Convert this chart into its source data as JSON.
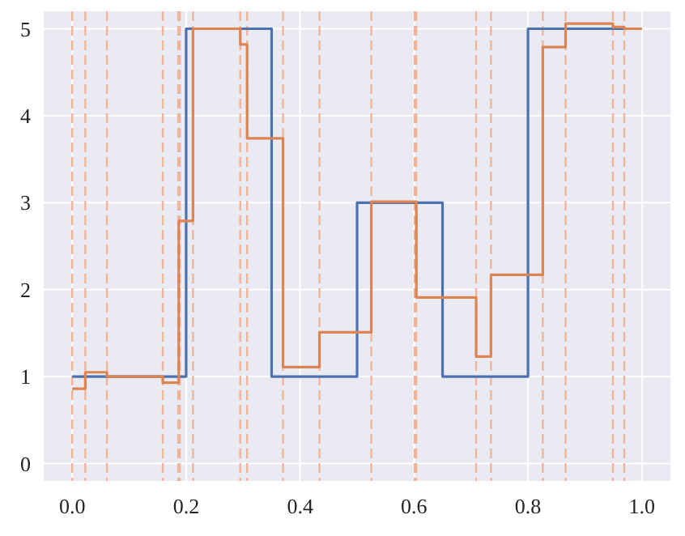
{
  "chart_data": {
    "type": "step",
    "xlim": [
      -0.05,
      1.05
    ],
    "ylim": [
      -0.2,
      5.2
    ],
    "xticks": [
      {
        "value": 0,
        "label": "0.0"
      },
      {
        "value": 0.2,
        "label": "0.2"
      },
      {
        "value": 0.4,
        "label": "0.4"
      },
      {
        "value": 0.6,
        "label": "0.6"
      },
      {
        "value": 0.8,
        "label": "0.8"
      },
      {
        "value": 1,
        "label": "1.0"
      }
    ],
    "yticks": [
      0,
      1,
      2,
      3,
      4,
      5
    ],
    "grid": true,
    "series": [
      {
        "color": "#4c72b0",
        "x": [
          0,
          0.2,
          0.35,
          0.5,
          0.65,
          0.8,
          0.97
        ],
        "values": [
          1,
          5,
          1,
          3,
          1,
          5,
          5
        ]
      },
      {
        "color": "#dd8452",
        "x": [
          0,
          0.023,
          0.061,
          0.159,
          0.187,
          0.212,
          0.295,
          0.307,
          0.37,
          0.434,
          0.525,
          0.604,
          0.709,
          0.735,
          0.826,
          0.866,
          0.949,
          0.969,
          1.0
        ],
        "values": [
          0.86,
          1.05,
          1.0,
          0.93,
          2.79,
          5.0,
          4.82,
          3.74,
          1.11,
          1.51,
          3.01,
          1.91,
          1.23,
          2.17,
          4.79,
          5.06,
          5.02,
          5.0,
          5.0
        ]
      }
    ],
    "ref_lines": [
      {
        "axis": "x",
        "value": 0,
        "color": "#f0b49a",
        "line_style": "dashed"
      },
      {
        "axis": "x",
        "value": 0.023,
        "color": "#f0b49a",
        "line_style": "dashed"
      },
      {
        "axis": "x",
        "value": 0.061,
        "color": "#f0b49a",
        "line_style": "dashed"
      },
      {
        "axis": "x",
        "value": 0.159,
        "color": "#f0b49a",
        "line_style": "dashed"
      },
      {
        "axis": "x",
        "value": 0.186,
        "color": "#f0b49a",
        "line_style": "dashed"
      },
      {
        "axis": "x",
        "value": 0.189,
        "color": "#f0b49a",
        "line_style": "dashed"
      },
      {
        "axis": "x",
        "value": 0.212,
        "color": "#f0b49a",
        "line_style": "dashed"
      },
      {
        "axis": "x",
        "value": 0.295,
        "color": "#f0b49a",
        "line_style": "dashed"
      },
      {
        "axis": "x",
        "value": 0.307,
        "color": "#f0b49a",
        "line_style": "dashed"
      },
      {
        "axis": "x",
        "value": 0.37,
        "color": "#f0b49a",
        "line_style": "dashed"
      },
      {
        "axis": "x",
        "value": 0.434,
        "color": "#f0b49a",
        "line_style": "dashed"
      },
      {
        "axis": "x",
        "value": 0.525,
        "color": "#f0b49a",
        "line_style": "dashed"
      },
      {
        "axis": "x",
        "value": 0.601,
        "color": "#f0b49a",
        "line_style": "dashed"
      },
      {
        "axis": "x",
        "value": 0.604,
        "color": "#f0b49a",
        "line_style": "dashed"
      },
      {
        "axis": "x",
        "value": 0.709,
        "color": "#f0b49a",
        "line_style": "dashed"
      },
      {
        "axis": "x",
        "value": 0.735,
        "color": "#f0b49a",
        "line_style": "dashed"
      },
      {
        "axis": "x",
        "value": 0.826,
        "color": "#f0b49a",
        "line_style": "dashed"
      },
      {
        "axis": "x",
        "value": 0.866,
        "color": "#f0b49a",
        "line_style": "dashed"
      },
      {
        "axis": "x",
        "value": 0.949,
        "color": "#f0b49a",
        "line_style": "dashed"
      },
      {
        "axis": "x",
        "value": 0.969,
        "color": "#f0b49a",
        "line_style": "dashed"
      }
    ]
  }
}
